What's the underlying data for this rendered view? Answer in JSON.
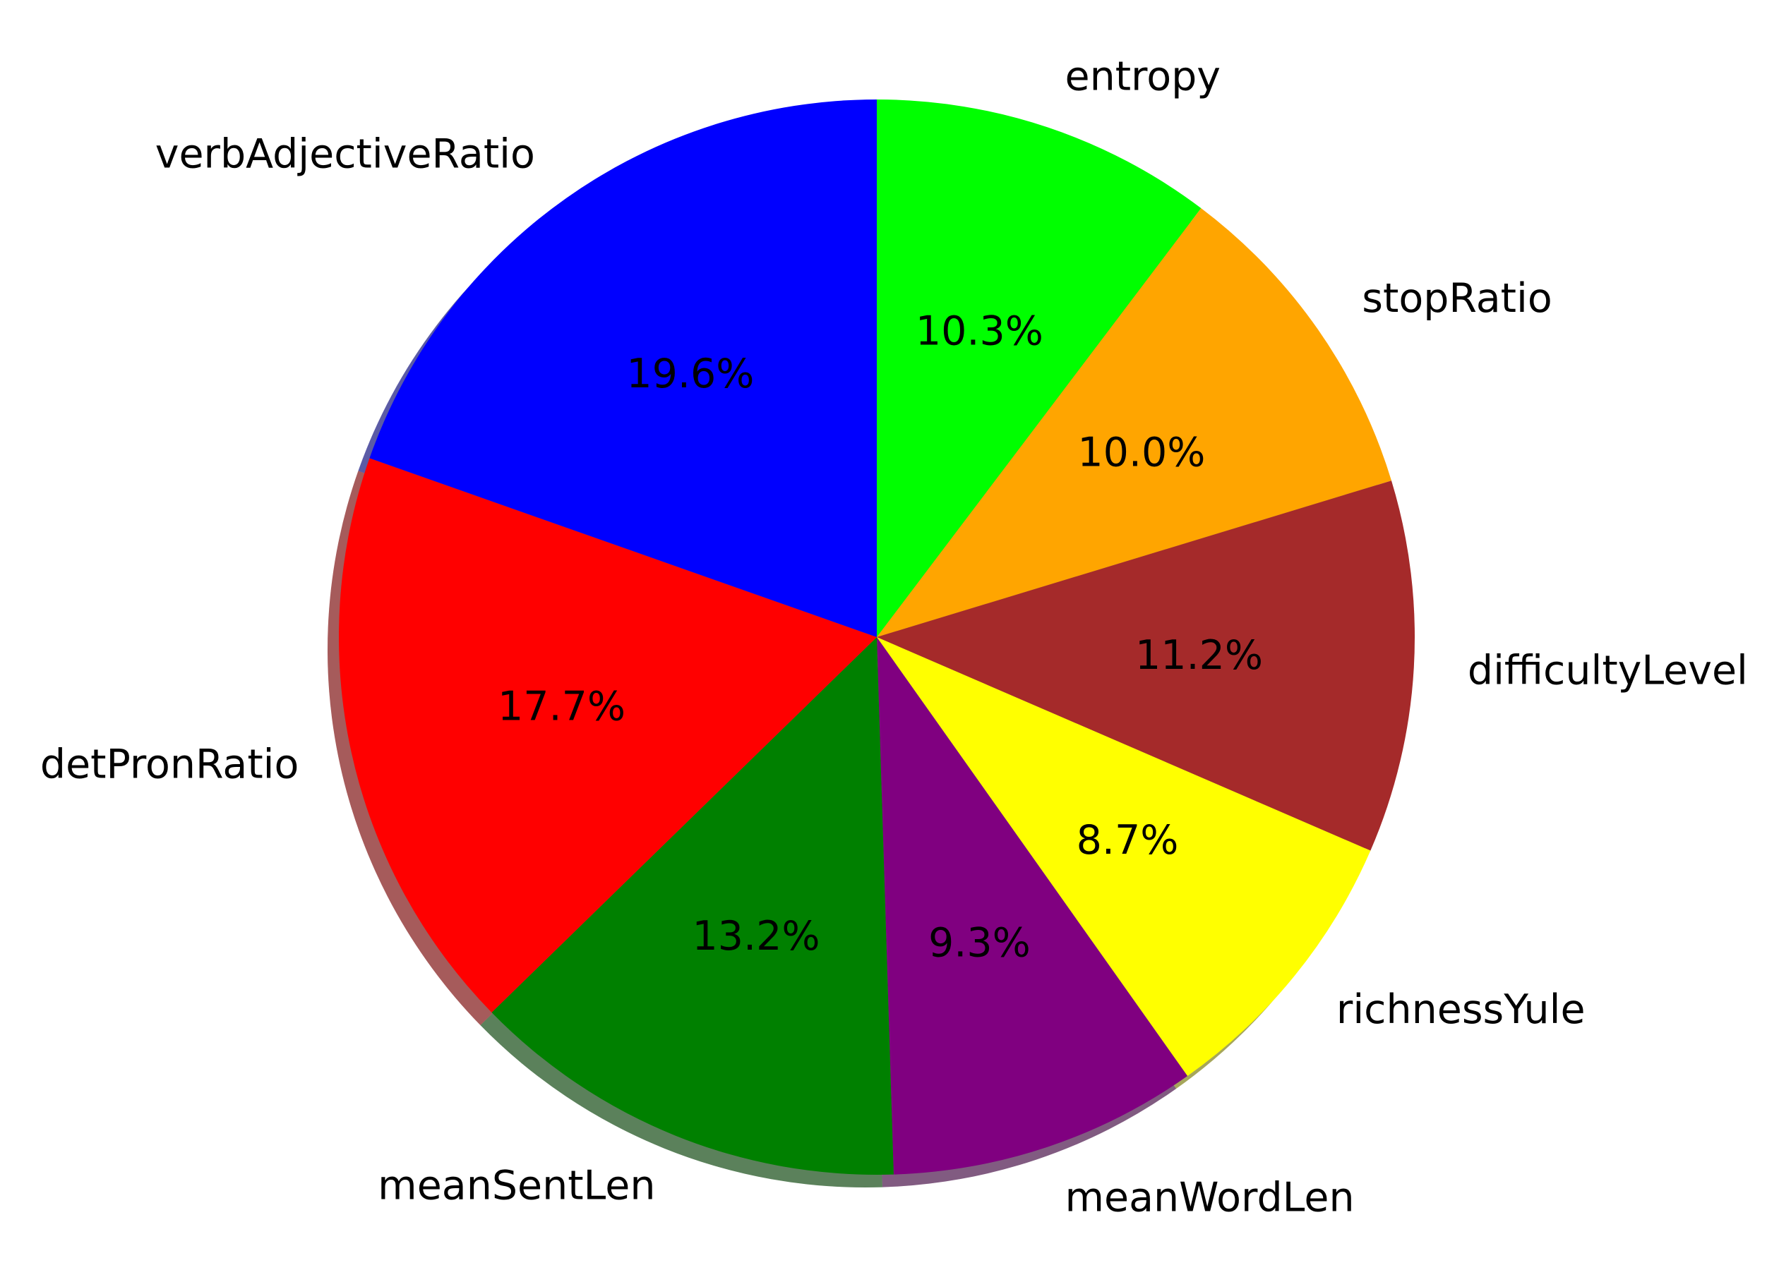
{
  "chart_data": {
    "type": "pie",
    "title": "",
    "labels": [
      "entropy",
      "stopRatio",
      "difficultyLevel",
      "richnessYule",
      "meanWordLen",
      "meanSentLen",
      "detPronRatio",
      "verbAdjectiveRatio"
    ],
    "values": [
      10.3,
      10.0,
      11.2,
      8.7,
      9.3,
      13.2,
      17.7,
      19.6
    ],
    "percent_labels": [
      "10.3%",
      "10.0%",
      "11.2%",
      "8.7%",
      "9.3%",
      "13.2%",
      "17.7%",
      "19.6%"
    ],
    "colors": [
      "#00ff00",
      "#ffa500",
      "#a52a2a",
      "#ffff00",
      "#800080",
      "#008000",
      "#ff0000",
      "#0000ff"
    ],
    "start_angle_deg": 90,
    "direction": "clockwise",
    "shadow": true,
    "legend": "none"
  }
}
